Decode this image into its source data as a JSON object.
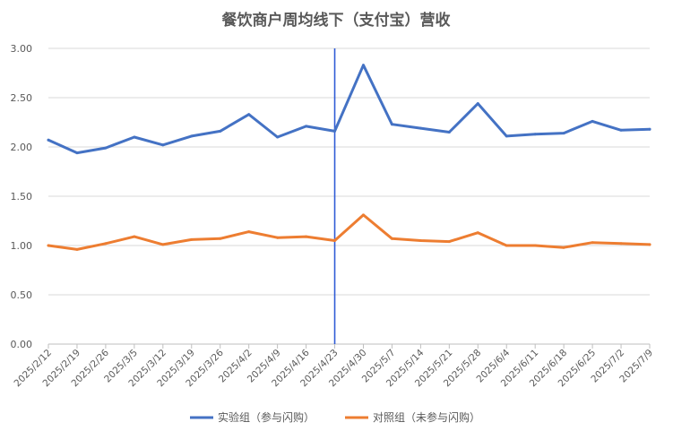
{
  "chart_data": {
    "type": "line",
    "title": "餐饮商户周均线下（支付宝）营收",
    "xlabel": "",
    "ylabel": "",
    "ylim": [
      0,
      3.0
    ],
    "yticks": [
      "0.00",
      "0.50",
      "1.00",
      "1.50",
      "2.00",
      "2.50",
      "3.00"
    ],
    "grid": true,
    "legend_position": "bottom",
    "categories": [
      "2025/2/12",
      "2025/2/19",
      "2025/2/26",
      "2025/3/5",
      "2025/3/12",
      "2025/3/19",
      "2025/3/26",
      "2025/4/2",
      "2025/4/9",
      "2025/4/16",
      "2025/4/23",
      "2025/4/30",
      "2025/5/7",
      "2025/5/14",
      "2025/5/21",
      "2025/5/28",
      "2025/6/4",
      "2025/6/11",
      "2025/6/18",
      "2025/6/25",
      "2025/7/2",
      "2025/7/9"
    ],
    "series": [
      {
        "name": "实验组（参与闪购）",
        "color": "#4472C4",
        "values": [
          2.07,
          1.94,
          1.99,
          2.1,
          2.02,
          2.11,
          2.16,
          2.33,
          2.1,
          2.21,
          2.16,
          2.83,
          2.23,
          2.19,
          2.15,
          2.44,
          2.11,
          2.13,
          2.14,
          2.26,
          2.17,
          2.18
        ]
      },
      {
        "name": "对照组（未参与闪购）",
        "color": "#ED7D31",
        "values": [
          1.0,
          0.96,
          1.02,
          1.09,
          1.01,
          1.06,
          1.07,
          1.14,
          1.08,
          1.09,
          1.05,
          1.31,
          1.07,
          1.05,
          1.04,
          1.13,
          1.0,
          1.0,
          0.98,
          1.03,
          1.02,
          1.01
        ]
      }
    ],
    "reference_line": {
      "category": "2025/4/23",
      "color": "#2F5BD6"
    },
    "grid_color": "#D9D9D9",
    "axis_color": "#BFBFBF",
    "text_color": "#595959"
  }
}
